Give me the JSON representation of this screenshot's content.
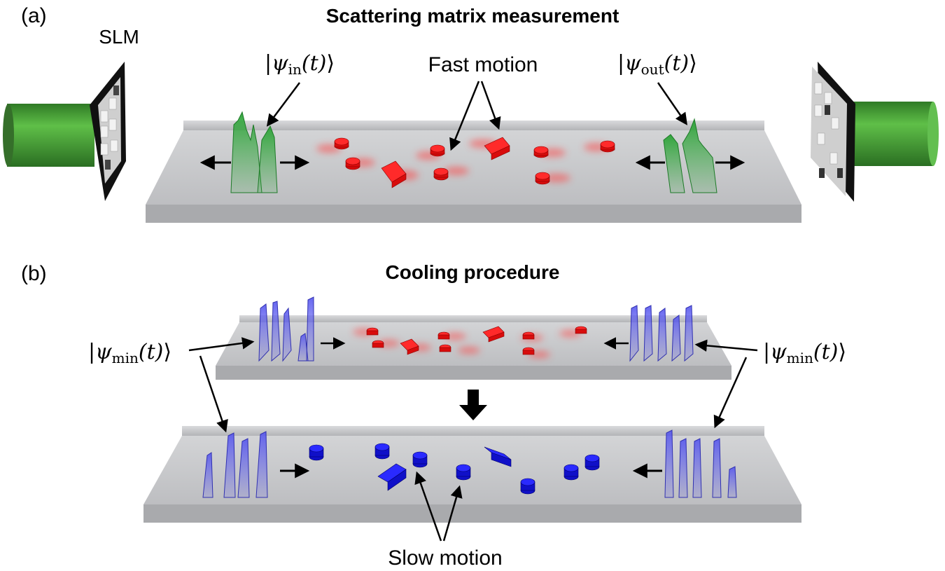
{
  "panel_a": {
    "label": "(a)",
    "title": "Scattering matrix measurement",
    "slm_label": "SLM",
    "psi_in": {
      "symbol": "ψ",
      "subscript": "in",
      "arg": "(t)"
    },
    "psi_out": {
      "symbol": "ψ",
      "subscript": "out",
      "arg": "(t)"
    },
    "fast_motion_label": "Fast motion"
  },
  "panel_b": {
    "label": "(b)",
    "title": "Cooling procedure",
    "psi_min_left": {
      "symbol": "ψ",
      "subscript": "min",
      "arg": "(t)"
    },
    "psi_min_right": {
      "symbol": "ψ",
      "subscript": "min",
      "arg": "(t)"
    },
    "slow_motion_label": "Slow motion"
  },
  "colors": {
    "waveguide_top": "#c9cacc",
    "waveguide_side": "#a7a8ab",
    "wave_green": "#2e9e3a",
    "particle_red": "#e01010",
    "particle_blue": "#1414d8",
    "wave_blue": "#5a5ae6",
    "laser_green": "#3e9a30"
  }
}
